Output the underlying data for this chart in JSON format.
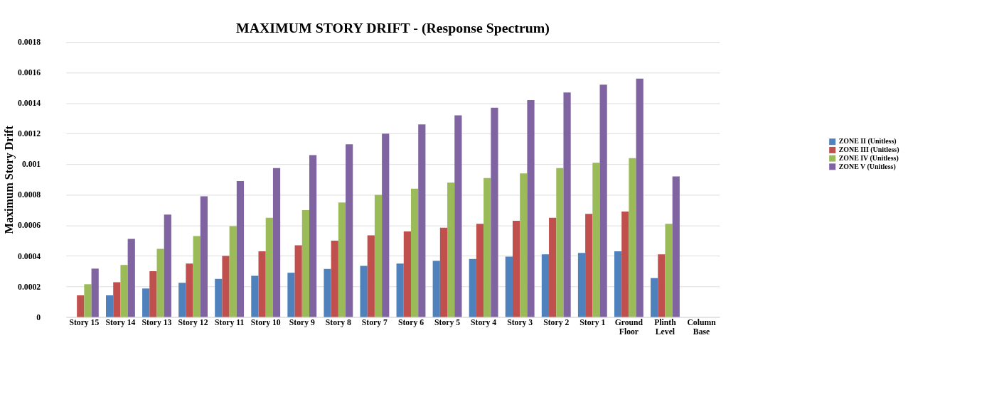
{
  "chart_data": {
    "type": "bar",
    "title": "MAXIMUM STORY DRIFT - (Response Spectrum)",
    "ylabel": "Maximum Story Drift",
    "categories": [
      "Story 15",
      "Story 14",
      "Story 13",
      "Story 12",
      "Story 11",
      "Story 10",
      "Story 9",
      "Story 8",
      "Story 7",
      "Story 6",
      "Story 5",
      "Story 4",
      "Story 3",
      "Story 2",
      "Story 1",
      "Ground Floor",
      "Plinth Level",
      "Column Base"
    ],
    "series": [
      {
        "name": "ZONE II (Unitless)",
        "color": "#4f81bd",
        "values": [
          0,
          0.000142,
          0.000187,
          0.000224,
          0.00025,
          0.00027,
          0.00029,
          0.000315,
          0.000335,
          0.00035,
          0.000368,
          0.00038,
          0.000395,
          0.00041,
          0.00042,
          0.00043,
          0.000255,
          0
        ]
      },
      {
        "name": "ZONE III (Unitless)",
        "color": "#c0504d",
        "values": [
          0.000142,
          0.000228,
          0.0003,
          0.00035,
          0.0004,
          0.00043,
          0.00047,
          0.0005,
          0.000535,
          0.00056,
          0.000585,
          0.00061,
          0.00063,
          0.00065,
          0.000675,
          0.00069,
          0.00041,
          0
        ]
      },
      {
        "name": "ZONE IV (Unitless)",
        "color": "#9bbb59",
        "values": [
          0.000215,
          0.000341,
          0.000447,
          0.00053,
          0.000595,
          0.00065,
          0.0007,
          0.00075,
          0.0008,
          0.00084,
          0.00088,
          0.00091,
          0.00094,
          0.000975,
          0.00101,
          0.00104,
          0.00061,
          0
        ]
      },
      {
        "name": "ZONE V (Unitless)",
        "color": "#8064a2",
        "values": [
          0.000317,
          0.000512,
          0.00067,
          0.00079,
          0.00089,
          0.000975,
          0.00106,
          0.00113,
          0.0012,
          0.00126,
          0.00132,
          0.00137,
          0.00142,
          0.00147,
          0.00152,
          0.00156,
          0.00092,
          0
        ]
      }
    ],
    "ylim": [
      0,
      0.0018
    ],
    "yticks": [
      0,
      0.0002,
      0.0004,
      0.0006,
      0.0008,
      0.001,
      0.0012,
      0.0014,
      0.0016,
      0.0018
    ],
    "grid": "y",
    "legend": "right"
  }
}
